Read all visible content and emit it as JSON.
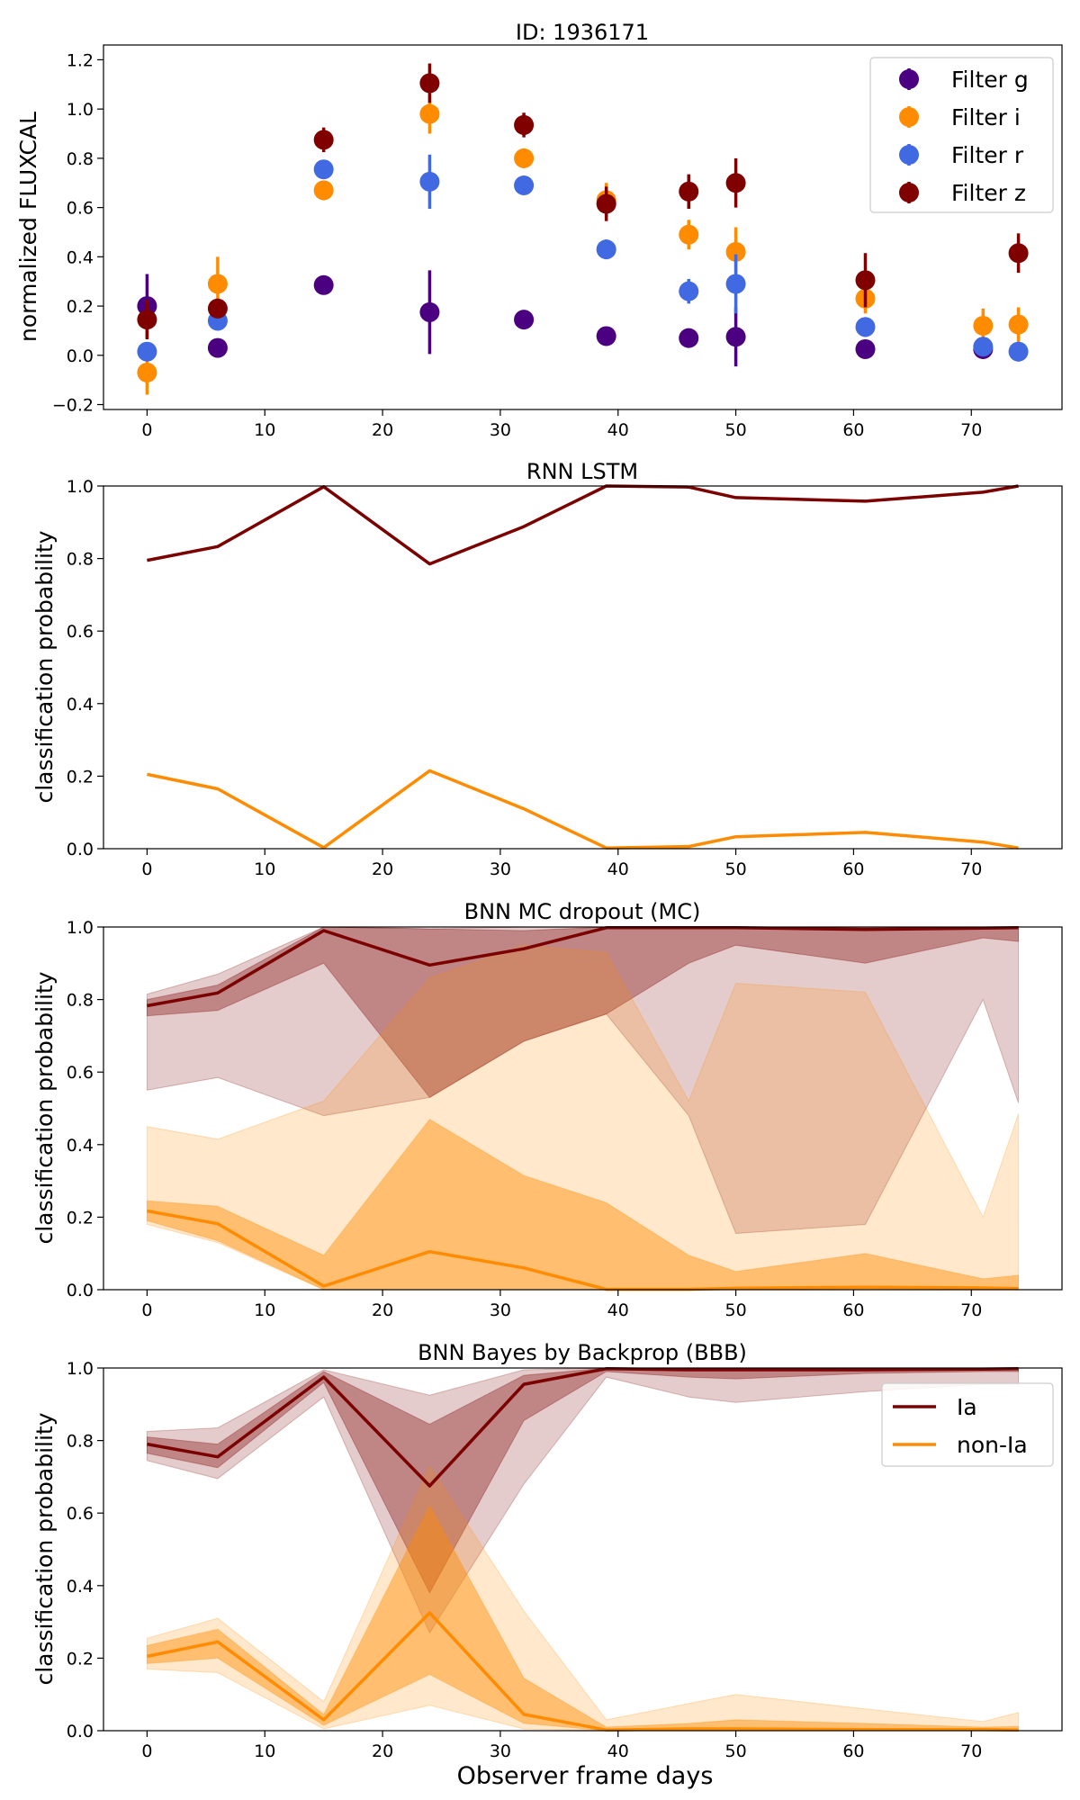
{
  "figure": {
    "xlabel": "Observer frame days",
    "colors": {
      "g": "#4b0082",
      "i": "#ff8c00",
      "r": "#4169e1",
      "z": "#800000",
      "ia": "#7b0000",
      "nonia": "#ff8c00"
    }
  },
  "chart_data": [
    {
      "type": "scatter",
      "title": "ID: 1936171",
      "xlabel": "",
      "ylabel": "normalized FLUXCAL",
      "xlim": [
        -3.7,
        77.7
      ],
      "ylim": [
        -0.22,
        1.26
      ],
      "xticks": [
        "0",
        "10",
        "20",
        "30",
        "40",
        "50",
        "60",
        "70"
      ],
      "yticks": [
        "−0.2",
        "0.0",
        "0.2",
        "0.4",
        "0.6",
        "0.8",
        "1.0",
        "1.2"
      ],
      "legend_position": "top-right",
      "series": [
        {
          "name": "Filter g",
          "key": "g",
          "color": "#4b0082",
          "x": [
            0,
            6,
            15,
            24,
            32,
            39,
            46,
            50,
            61,
            71
          ],
          "y": [
            0.2,
            0.03,
            0.285,
            0.175,
            0.145,
            0.078,
            0.07,
            0.075,
            0.025,
            0.025
          ],
          "err": [
            0.13,
            0.02,
            0.02,
            0.17,
            0.02,
            0.02,
            0.02,
            0.12,
            0.02,
            0.02
          ]
        },
        {
          "name": "Filter i",
          "key": "i",
          "color": "#ff8c00",
          "x": [
            0,
            6,
            15,
            24,
            32,
            39,
            46,
            50,
            61,
            71,
            74
          ],
          "y": [
            -0.07,
            0.29,
            0.67,
            0.98,
            0.8,
            0.63,
            0.49,
            0.42,
            0.23,
            0.12,
            0.125
          ],
          "err": [
            0.09,
            0.11,
            0.04,
            0.08,
            0.04,
            0.07,
            0.06,
            0.1,
            0.06,
            0.07,
            0.07
          ]
        },
        {
          "name": "Filter r",
          "key": "r",
          "color": "#4169e1",
          "x": [
            0,
            6,
            15,
            24,
            32,
            39,
            46,
            50,
            61,
            71,
            74
          ],
          "y": [
            0.015,
            0.14,
            0.755,
            0.705,
            0.69,
            0.43,
            0.26,
            0.29,
            0.115,
            0.035,
            0.015
          ],
          "err": [
            0.03,
            0.03,
            0.03,
            0.11,
            0.03,
            0.04,
            0.05,
            0.12,
            0.04,
            0.03,
            0.04
          ]
        },
        {
          "name": "Filter z",
          "key": "z",
          "color": "#800000",
          "x": [
            0,
            6,
            15,
            24,
            32,
            39,
            46,
            50,
            61,
            74
          ],
          "y": [
            0.145,
            0.19,
            0.875,
            1.105,
            0.935,
            0.615,
            0.665,
            0.7,
            0.305,
            0.415
          ],
          "err": [
            0.08,
            0.04,
            0.05,
            0.08,
            0.05,
            0.07,
            0.07,
            0.1,
            0.11,
            0.08
          ]
        }
      ]
    },
    {
      "type": "line",
      "title": "RNN LSTM",
      "xlabel": "",
      "ylabel": "classification probability",
      "xlim": [
        -3.7,
        77.7
      ],
      "ylim": [
        0,
        1
      ],
      "xticks": [
        "0",
        "10",
        "20",
        "30",
        "40",
        "50",
        "60",
        "70"
      ],
      "yticks": [
        "0.0",
        "0.2",
        "0.4",
        "0.6",
        "0.8",
        "1.0"
      ],
      "x": [
        0,
        6,
        15,
        24,
        32,
        39,
        46,
        50,
        61,
        71,
        74
      ],
      "series": [
        {
          "name": "Ia",
          "key": "ia",
          "color": "#7b0000",
          "values": [
            0.795,
            0.833,
            0.998,
            0.785,
            0.888,
            1.0,
            0.997,
            0.968,
            0.958,
            0.983,
            1.0
          ]
        },
        {
          "name": "non-Ia",
          "key": "nonia",
          "color": "#ff8c00",
          "values": [
            0.205,
            0.165,
            0.003,
            0.215,
            0.11,
            0.002,
            0.006,
            0.033,
            0.045,
            0.018,
            0.002
          ]
        }
      ]
    },
    {
      "type": "area",
      "title": "BNN MC dropout (MC)",
      "xlabel": "",
      "ylabel": "classification probability",
      "xlim": [
        -3.7,
        77.7
      ],
      "ylim": [
        0,
        1
      ],
      "xticks": [
        "0",
        "10",
        "20",
        "30",
        "40",
        "50",
        "60",
        "70"
      ],
      "yticks": [
        "0.0",
        "0.2",
        "0.4",
        "0.6",
        "0.8",
        "1.0"
      ],
      "x": [
        0,
        6,
        15,
        24,
        32,
        39,
        46,
        50,
        61,
        71,
        74
      ],
      "series": [
        {
          "name": "Ia",
          "key": "ia",
          "color": "#7b0000",
          "values": [
            0.783,
            0.818,
            0.99,
            0.895,
            0.94,
            0.998,
            0.998,
            0.998,
            0.993,
            0.997,
            0.998
          ],
          "band_outer_low": [
            0.55,
            0.585,
            0.48,
            0.53,
            0.685,
            0.76,
            0.48,
            0.155,
            0.18,
            0.8,
            0.515
          ],
          "band_outer_high": [
            0.815,
            0.87,
            1.0,
            0.995,
            1.0,
            1.0,
            1.0,
            1.0,
            1.0,
            1.0,
            1.0
          ],
          "band_inner_low": [
            0.755,
            0.77,
            0.9,
            0.53,
            0.685,
            0.76,
            0.9,
            0.95,
            0.9,
            0.97,
            0.96
          ],
          "band_inner_high": [
            0.8,
            0.84,
            1.0,
            0.995,
            0.99,
            1.0,
            1.0,
            1.0,
            1.0,
            1.0,
            1.0
          ]
        },
        {
          "name": "non-Ia",
          "key": "nonia",
          "color": "#ff8c00",
          "values": [
            0.217,
            0.182,
            0.01,
            0.105,
            0.06,
            0.001,
            0.001,
            0.004,
            0.007,
            0.005,
            0.003
          ],
          "band_outer_low": [
            0.18,
            0.13,
            0.0,
            0.0,
            0.0,
            0.0,
            0.0,
            0.0,
            0.0,
            0.0,
            0.0
          ],
          "band_outer_high": [
            0.45,
            0.415,
            0.52,
            0.86,
            0.95,
            0.93,
            0.52,
            0.845,
            0.82,
            0.2,
            0.485
          ],
          "band_inner_low": [
            0.19,
            0.135,
            0.0,
            0.0,
            0.0,
            0.0,
            0.0,
            0.0,
            0.0,
            0.0,
            0.0
          ],
          "band_inner_high": [
            0.245,
            0.23,
            0.095,
            0.47,
            0.315,
            0.24,
            0.095,
            0.05,
            0.1,
            0.03,
            0.04
          ]
        }
      ]
    },
    {
      "type": "area",
      "title": "BNN Bayes by Backprop (BBB)",
      "xlabel": "Observer frame days",
      "ylabel": "classification probability",
      "xlim": [
        -3.7,
        77.7
      ],
      "ylim": [
        0,
        1
      ],
      "xticks": [
        "0",
        "10",
        "20",
        "30",
        "40",
        "50",
        "60",
        "70"
      ],
      "yticks": [
        "0.0",
        "0.2",
        "0.4",
        "0.6",
        "0.8",
        "1.0"
      ],
      "legend_position": "top-right",
      "x": [
        0,
        6,
        15,
        24,
        32,
        39,
        46,
        50,
        61,
        71,
        74
      ],
      "series": [
        {
          "name": "Ia",
          "key": "ia",
          "color": "#7b0000",
          "values": [
            0.79,
            0.755,
            0.975,
            0.675,
            0.955,
            0.998,
            0.995,
            0.995,
            0.995,
            0.997,
            0.998
          ],
          "band_outer_low": [
            0.745,
            0.695,
            0.92,
            0.27,
            0.68,
            0.975,
            0.92,
            0.905,
            0.935,
            0.955,
            0.955
          ],
          "band_outer_high": [
            0.825,
            0.835,
            0.995,
            0.925,
            0.995,
            1.0,
            1.0,
            1.0,
            1.0,
            1.0,
            1.0
          ],
          "band_inner_low": [
            0.765,
            0.725,
            0.96,
            0.38,
            0.855,
            0.99,
            0.975,
            0.97,
            0.985,
            0.99,
            0.99
          ],
          "band_inner_high": [
            0.81,
            0.79,
            0.99,
            0.845,
            0.98,
            1.0,
            1.0,
            1.0,
            1.0,
            1.0,
            1.0
          ]
        },
        {
          "name": "non-Ia",
          "key": "nonia",
          "color": "#ff8c00",
          "values": [
            0.205,
            0.245,
            0.03,
            0.325,
            0.045,
            0.002,
            0.005,
            0.005,
            0.003,
            0.003,
            0.002
          ],
          "band_outer_low": [
            0.17,
            0.16,
            0.005,
            0.07,
            0.005,
            0.0,
            0.0,
            0.0,
            0.0,
            0.0,
            0.0
          ],
          "band_outer_high": [
            0.255,
            0.31,
            0.08,
            0.73,
            0.33,
            0.03,
            0.075,
            0.1,
            0.06,
            0.025,
            0.05
          ],
          "band_inner_low": [
            0.185,
            0.2,
            0.015,
            0.155,
            0.02,
            0.0,
            0.0,
            0.0,
            0.0,
            0.0,
            0.0
          ],
          "band_inner_high": [
            0.235,
            0.28,
            0.045,
            0.62,
            0.145,
            0.01,
            0.02,
            0.03,
            0.02,
            0.01,
            0.012
          ]
        }
      ]
    }
  ]
}
